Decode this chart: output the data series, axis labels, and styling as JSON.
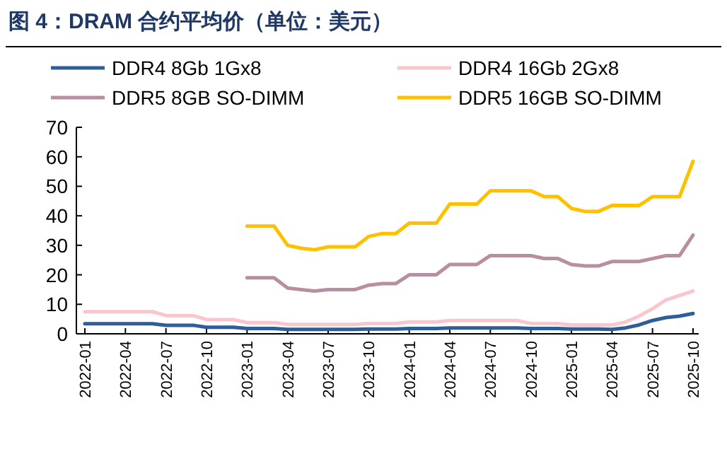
{
  "chart_data": {
    "type": "line",
    "title": "图 4：DRAM 合约平均价（单位：美元）",
    "categories": [
      "2022-01",
      null,
      null,
      "2022-04",
      null,
      null,
      "2022-07",
      null,
      null,
      "2022-10",
      null,
      null,
      "2023-01",
      null,
      null,
      "2023-04",
      null,
      null,
      "2023-07",
      null,
      null,
      "2023-10",
      null,
      null,
      "2024-01",
      null,
      null,
      "2024-04",
      null,
      null,
      "2024-07",
      null,
      null,
      "2024-10",
      null,
      null,
      "2025-01",
      null,
      null,
      "2025-04",
      null,
      null,
      "2025-07",
      null,
      null,
      "2025-10"
    ],
    "series": [
      {
        "name": "DDR4 8Gb 1Gx8",
        "color": "#2e5e9a",
        "values": [
          3.4,
          3.4,
          3.4,
          3.4,
          3.4,
          3.4,
          2.9,
          2.9,
          2.9,
          2.2,
          2.2,
          2.2,
          1.8,
          1.8,
          1.8,
          1.5,
          1.5,
          1.5,
          1.5,
          1.5,
          1.5,
          1.6,
          1.6,
          1.6,
          1.8,
          1.8,
          1.8,
          2.0,
          2.0,
          2.0,
          2.0,
          2.0,
          2.0,
          1.8,
          1.8,
          1.8,
          1.6,
          1.6,
          1.6,
          1.5,
          2.0,
          3.0,
          4.5,
          5.5,
          6.0,
          6.9
        ]
      },
      {
        "name": "DDR4 16Gb 2Gx8",
        "color": "#f8c6cc",
        "values": [
          7.5,
          7.5,
          7.5,
          7.5,
          7.5,
          7.5,
          6.2,
          6.2,
          6.2,
          4.8,
          4.8,
          4.8,
          3.8,
          3.8,
          3.8,
          3.2,
          3.2,
          3.2,
          3.2,
          3.2,
          3.2,
          3.5,
          3.5,
          3.5,
          4.0,
          4.0,
          4.0,
          4.5,
          4.5,
          4.5,
          4.5,
          4.5,
          4.5,
          3.5,
          3.5,
          3.5,
          3.0,
          3.0,
          3.0,
          3.0,
          4.0,
          6.0,
          8.5,
          11.5,
          13.0,
          14.5
        ]
      },
      {
        "name": "DDR5 8GB SO-DIMM",
        "color": "#b88ea0",
        "values": [
          null,
          null,
          null,
          null,
          null,
          null,
          null,
          null,
          null,
          null,
          null,
          null,
          19,
          19,
          19,
          15.5,
          15,
          14.5,
          15,
          15,
          15,
          16.5,
          17,
          17,
          20,
          20,
          20,
          23.5,
          23.5,
          23.5,
          26.5,
          26.5,
          26.5,
          26.5,
          25.5,
          25.5,
          23.5,
          23,
          23,
          24.5,
          24.5,
          24.5,
          25.5,
          26.5,
          26.5,
          33.5
        ]
      },
      {
        "name": "DDR5 16GB SO-DIMM",
        "color": "#ffc000",
        "values": [
          null,
          null,
          null,
          null,
          null,
          null,
          null,
          null,
          null,
          null,
          null,
          null,
          36.5,
          36.5,
          36.5,
          30,
          29,
          28.5,
          29.5,
          29.5,
          29.5,
          33,
          34,
          34,
          37.5,
          37.5,
          37.5,
          44,
          44,
          44,
          48.5,
          48.5,
          48.5,
          48.5,
          46.5,
          46.5,
          42.5,
          41.5,
          41.5,
          43.5,
          43.5,
          43.5,
          46.5,
          46.5,
          46.5,
          58.5
        ]
      }
    ],
    "ylim": [
      0,
      70
    ],
    "yticks": [
      0,
      10,
      20,
      30,
      40,
      50,
      60,
      70
    ],
    "grid": false,
    "legend": "top",
    "marker": "none",
    "line_style": "solid"
  }
}
